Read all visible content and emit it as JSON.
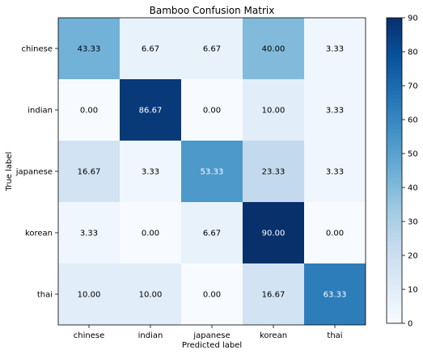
{
  "chart_data": {
    "type": "heatmap",
    "title": "Bamboo Confusion Matrix",
    "xlabel": "Predicted label",
    "ylabel": "True label",
    "x_categories": [
      "chinese",
      "indian",
      "japanese",
      "korean",
      "thai"
    ],
    "y_categories": [
      "chinese",
      "indian",
      "japanese",
      "korean",
      "thai"
    ],
    "values": [
      [
        43.33,
        6.67,
        6.67,
        40.0,
        3.33
      ],
      [
        0.0,
        86.67,
        0.0,
        10.0,
        3.33
      ],
      [
        16.67,
        3.33,
        53.33,
        23.33,
        3.33
      ],
      [
        3.33,
        0.0,
        6.67,
        90.0,
        0.0
      ],
      [
        10.0,
        10.0,
        0.0,
        16.67,
        63.33
      ]
    ],
    "value_labels": [
      [
        "43.33",
        "6.67",
        "6.67",
        "40.00",
        "3.33"
      ],
      [
        "0.00",
        "86.67",
        "0.00",
        "10.00",
        "3.33"
      ],
      [
        "16.67",
        "3.33",
        "53.33",
        "23.33",
        "3.33"
      ],
      [
        "3.33",
        "0.00",
        "6.67",
        "90.00",
        "0.00"
      ],
      [
        "10.00",
        "10.00",
        "0.00",
        "16.67",
        "63.33"
      ]
    ],
    "colormap": "Blues",
    "colorbar": {
      "range": [
        0,
        90
      ],
      "ticks": [
        0,
        10,
        20,
        30,
        40,
        50,
        60,
        70,
        80,
        90
      ],
      "tick_labels": [
        "0",
        "10",
        "20",
        "30",
        "40",
        "50",
        "60",
        "70",
        "80",
        "90"
      ]
    },
    "grid": false
  }
}
